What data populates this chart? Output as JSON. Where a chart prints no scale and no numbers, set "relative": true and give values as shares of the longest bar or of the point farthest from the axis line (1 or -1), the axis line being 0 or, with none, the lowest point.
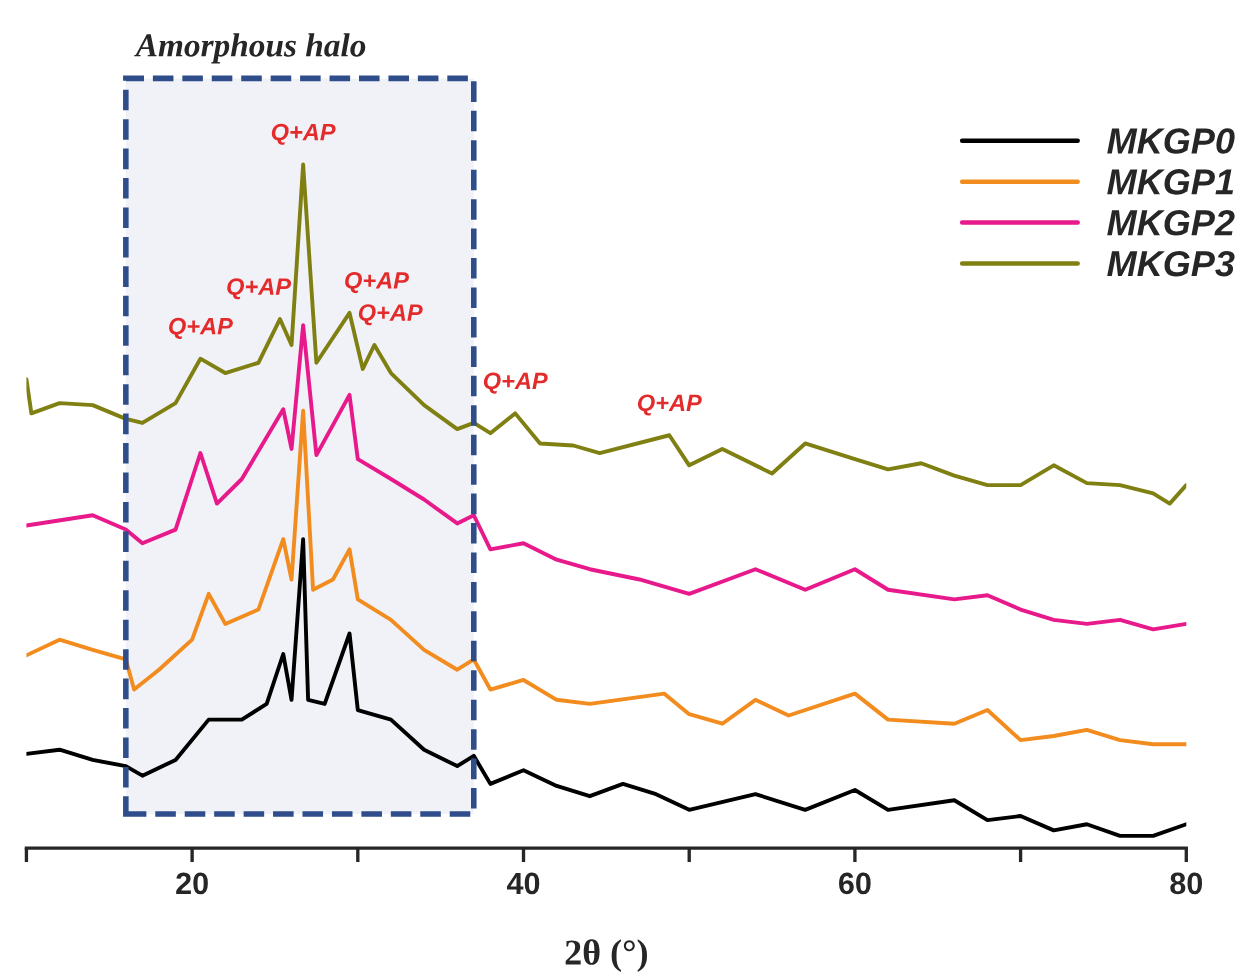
{
  "chart_data": {
    "type": "line",
    "relative": true,
    "xlabel": "2θ (°)",
    "xlim": [
      10,
      80
    ],
    "xticks": [
      {
        "value": 10,
        "label": null
      },
      20,
      {
        "value": 30,
        "label": null
      },
      40,
      {
        "value": 50,
        "label": null
      },
      60,
      {
        "value": 70,
        "label": null
      },
      80
    ],
    "tick_labels": "x",
    "grid": false,
    "legend": "top right",
    "marker": "none",
    "line_style": "solid",
    "bands": [
      {
        "axis": "x",
        "from": 16,
        "to": 37,
        "label": "Amorphous halo",
        "color": "#2e4d8a"
      }
    ],
    "annotations": [
      {
        "text": "Q+AP",
        "x": 20.5,
        "y": 0.716
      },
      {
        "text": "Q+AP",
        "x": 25.3,
        "y": 0.774
      },
      {
        "text": "Q+AP",
        "x": 26.7,
        "y": 1.0
      },
      {
        "text": "Q+AP",
        "x": 29.5,
        "y": 0.783
      },
      {
        "text": "Q+AP",
        "x": 31,
        "y": 0.736
      },
      {
        "text": "Q+AP",
        "x": 39.5,
        "y": 0.636
      },
      {
        "text": "Q+AP",
        "x": 48.8,
        "y": 0.604
      }
    ],
    "series": [
      {
        "name": "MKGP0",
        "color": "#000000",
        "x": [
          10,
          12,
          14,
          16,
          17,
          19,
          21,
          23,
          24.5,
          25.5,
          26,
          26.7,
          27,
          28,
          29.5,
          30,
          32,
          34,
          36,
          37,
          38,
          40,
          42,
          44,
          46,
          48,
          50,
          54,
          57,
          60,
          62,
          66,
          68,
          70,
          72,
          74,
          76,
          78,
          80
        ],
        "values": [
          0.138,
          0.144,
          0.129,
          0.12,
          0.106,
          0.129,
          0.188,
          0.188,
          0.211,
          0.284,
          0.217,
          0.452,
          0.217,
          0.211,
          0.314,
          0.202,
          0.188,
          0.144,
          0.12,
          0.135,
          0.094,
          0.114,
          0.091,
          0.076,
          0.094,
          0.079,
          0.056,
          0.079,
          0.056,
          0.085,
          0.056,
          0.07,
          0.041,
          0.047,
          0.026,
          0.035,
          0.018,
          0.018,
          0.035
        ]
      },
      {
        "name": "MKGP1",
        "color": "#f28c1e",
        "x": [
          10,
          12,
          14,
          16,
          16.5,
          18,
          20,
          21,
          22,
          24,
          25.5,
          26,
          26.7,
          27.3,
          28.5,
          29.5,
          30,
          32,
          34,
          36,
          37,
          38,
          40,
          42,
          44,
          48.5,
          50,
          52,
          54,
          56,
          60,
          62,
          66,
          68,
          70,
          72,
          74,
          76,
          78,
          80
        ],
        "values": [
          0.282,
          0.305,
          0.29,
          0.276,
          0.232,
          0.261,
          0.305,
          0.372,
          0.328,
          0.349,
          0.452,
          0.393,
          0.64,
          0.378,
          0.393,
          0.437,
          0.364,
          0.334,
          0.29,
          0.261,
          0.276,
          0.232,
          0.246,
          0.217,
          0.211,
          0.226,
          0.196,
          0.182,
          0.217,
          0.194,
          0.226,
          0.188,
          0.182,
          0.202,
          0.158,
          0.164,
          0.173,
          0.158,
          0.152,
          0.152
        ]
      },
      {
        "name": "MKGP2",
        "color": "#e8198b",
        "x": [
          10,
          14,
          16,
          17,
          19,
          20.5,
          21.5,
          23,
          25.5,
          26,
          26.7,
          27.5,
          29.5,
          30,
          32,
          34,
          36,
          37,
          38,
          40,
          42,
          44,
          47,
          50,
          54,
          57,
          60,
          62,
          66,
          68,
          70,
          72,
          74,
          76,
          78,
          80
        ],
        "values": [
          0.472,
          0.487,
          0.466,
          0.446,
          0.466,
          0.578,
          0.504,
          0.54,
          0.642,
          0.584,
          0.765,
          0.575,
          0.663,
          0.569,
          0.54,
          0.51,
          0.475,
          0.487,
          0.437,
          0.446,
          0.422,
          0.408,
          0.393,
          0.372,
          0.408,
          0.378,
          0.408,
          0.378,
          0.364,
          0.37,
          0.349,
          0.334,
          0.328,
          0.334,
          0.32,
          0.328
        ]
      },
      {
        "name": "MKGP3",
        "color": "#7f7f12",
        "x": [
          10,
          10.3,
          12,
          14,
          16,
          17,
          19,
          20.5,
          22,
          24,
          25.3,
          26,
          26.7,
          27.5,
          29.5,
          30.3,
          31,
          32,
          34,
          36,
          37,
          38,
          39.5,
          41,
          43,
          44.6,
          48.8,
          50,
          52,
          55,
          57,
          60,
          62,
          64,
          66,
          68,
          70,
          72,
          74,
          76,
          78,
          79,
          80
        ],
        "values": [
          0.686,
          0.636,
          0.651,
          0.648,
          0.628,
          0.622,
          0.651,
          0.716,
          0.695,
          0.71,
          0.774,
          0.736,
          1.0,
          0.71,
          0.783,
          0.701,
          0.736,
          0.695,
          0.648,
          0.613,
          0.622,
          0.607,
          0.636,
          0.592,
          0.589,
          0.578,
          0.604,
          0.56,
          0.584,
          0.548,
          0.592,
          0.569,
          0.554,
          0.563,
          0.545,
          0.531,
          0.531,
          0.56,
          0.534,
          0.531,
          0.519,
          0.504,
          0.531
        ]
      }
    ]
  }
}
